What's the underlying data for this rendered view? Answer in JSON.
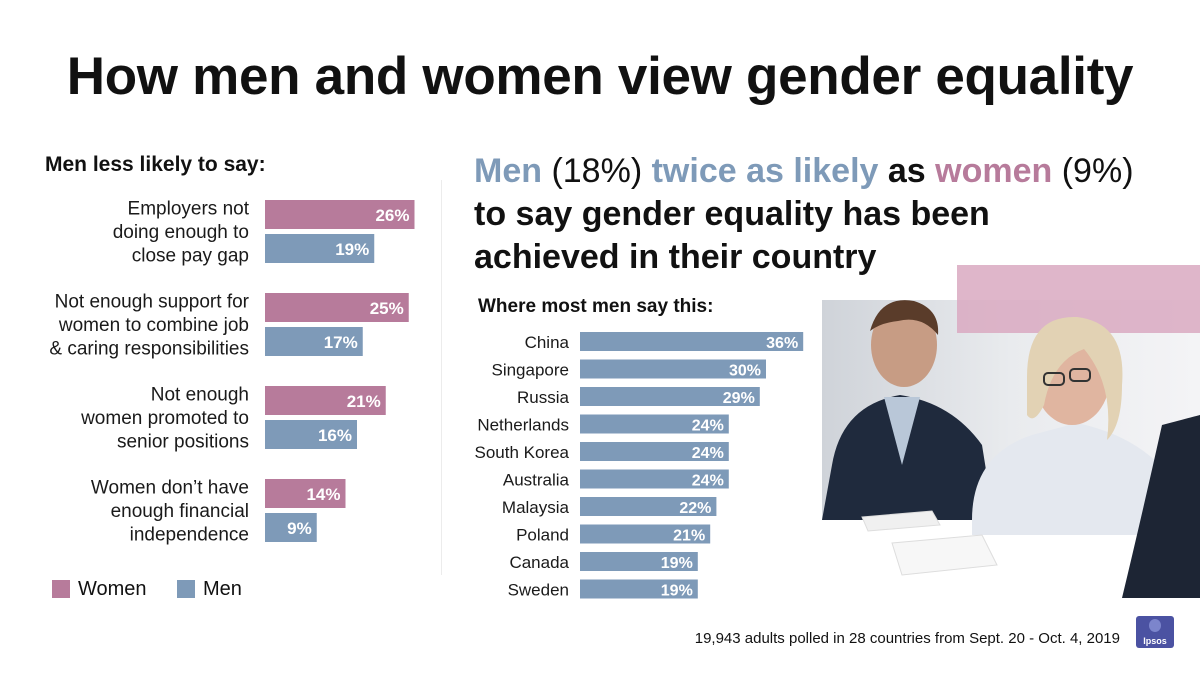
{
  "title": "How men and women view gender equality",
  "left_heading": "Men less likely to say:",
  "headline": {
    "men": "Men",
    "men_pct": "(18%)",
    "twice": "twice as likely",
    "as": "as",
    "women": "women",
    "women_pct": "(9%)",
    "rest": "to say gender equality has been achieved in their country"
  },
  "right_heading": "Where most men say this:",
  "legend": {
    "women": "Women",
    "men": "Men"
  },
  "footnote": "19,943 adults polled in 28 countries from Sept. 20 - Oct. 4, 2019",
  "logo": "Ipsos",
  "colors": {
    "women": "#b77b9b",
    "men": "#7e9ab8",
    "text": "#1a1a1a"
  },
  "chart_data": [
    {
      "type": "bar",
      "orientation": "horizontal",
      "title": "Men less likely to say:",
      "categories": [
        [
          "Employers not",
          "doing enough to",
          "close pay gap"
        ],
        [
          "Not enough support for",
          "women to combine job",
          "& caring responsibilities"
        ],
        [
          "Not enough",
          "women promoted to",
          "senior positions"
        ],
        [
          "Women don’t have",
          "enough financial",
          "independence"
        ]
      ],
      "series": [
        {
          "name": "Women",
          "values": [
            26,
            25,
            21,
            14
          ]
        },
        {
          "name": "Men",
          "values": [
            19,
            17,
            16,
            9
          ]
        }
      ],
      "unit": "%",
      "xlim": [
        0,
        30
      ]
    },
    {
      "type": "bar",
      "orientation": "horizontal",
      "title": "Where most men say this:",
      "categories": [
        "China",
        "Singapore",
        "Russia",
        "Netherlands",
        "South Korea",
        "Australia",
        "Malaysia",
        "Poland",
        "Canada",
        "Sweden"
      ],
      "series": [
        {
          "name": "Men",
          "values": [
            36,
            30,
            29,
            24,
            24,
            24,
            22,
            21,
            19,
            19
          ]
        }
      ],
      "unit": "%",
      "xlim": [
        0,
        36
      ]
    }
  ]
}
